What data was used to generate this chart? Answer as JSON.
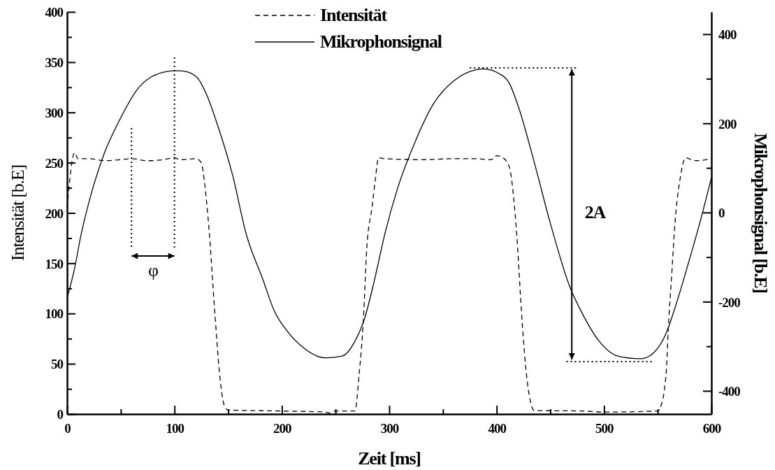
{
  "chart_data": {
    "type": "line",
    "xlabel": "Zeit [ms]",
    "ylabel": "Intensität [b.E]",
    "y2label": "Mikrophonsignal [b.E]",
    "xlim": [
      0,
      600
    ],
    "xticks": [
      0,
      {
        "value": 50,
        "label": null
      },
      100,
      {
        "value": 150,
        "label": null
      },
      200,
      {
        "value": 250,
        "label": null
      },
      300,
      {
        "value": 350,
        "label": null
      },
      400,
      {
        "value": 450,
        "label": null
      },
      500,
      {
        "value": 550,
        "label": null
      },
      600
    ],
    "ylim": [
      0,
      400
    ],
    "yticks": [
      0,
      {
        "value": 25,
        "label": null
      },
      50,
      {
        "value": 75,
        "label": null
      },
      100,
      {
        "value": 125,
        "label": null
      },
      150,
      {
        "value": 175,
        "label": null
      },
      200,
      {
        "value": 225,
        "label": null
      },
      250,
      {
        "value": 275,
        "label": null
      },
      300,
      {
        "value": 325,
        "label": null
      },
      350,
      {
        "value": 375,
        "label": null
      },
      400
    ],
    "y2lim": [
      -452,
      450
    ],
    "y2ticks": [
      -400,
      {
        "value": -300,
        "label": null
      },
      -200,
      {
        "value": -100,
        "label": null
      },
      0,
      {
        "value": 100,
        "label": null
      },
      200,
      {
        "value": 300,
        "label": null
      },
      400
    ],
    "legend": "top",
    "grid": false,
    "marker": "none",
    "annotations": [
      "φ",
      "2A"
    ],
    "series": [
      {
        "name": "Intensität",
        "color": "#000000",
        "line_style": "dashed",
        "x": [
          0,
          7,
          10,
          20,
          35,
          50,
          60,
          75,
          90,
          100,
          105,
          120,
          125,
          128,
          132,
          137.5,
          142,
          146.7,
          150,
          200,
          240,
          245,
          250,
          268,
          272,
          276,
          279,
          284,
          287,
          290,
          295,
          330,
          360,
          380,
          395,
          400,
          407,
          412,
          418,
          424,
          428,
          431,
          435,
          480,
          500,
          550,
          553,
          558,
          560,
          563,
          566,
          571,
          576,
          579,
          586,
          600
        ],
        "values": [
          205,
          260,
          254,
          254,
          252,
          253,
          254,
          252,
          253,
          255,
          253,
          254,
          250,
          230,
          186,
          102,
          40,
          7.5,
          4,
          3,
          2,
          1,
          3,
          3,
          40,
          95,
          164,
          206,
          233,
          255,
          254,
          253,
          254,
          254,
          253,
          257,
          254,
          245,
          189,
          88,
          37,
          15,
          3.5,
          3,
          2,
          3,
          8,
          43,
          88,
          138,
          189,
          235,
          255,
          254,
          252,
          254
        ]
      },
      {
        "name": "Mikrophonsignal",
        "color": "#000000",
        "line_style": "solid",
        "axis": "y2",
        "x": [
          0,
          7,
          13,
          21,
          35,
          49,
          65,
          88.5,
          100,
          109,
          121,
          130,
          140,
          154,
          167,
          182,
          193,
          205,
          221,
          240,
          256,
          268,
          277,
          286,
          296,
          308,
          324,
          341,
          360,
          388,
          402,
          412,
          421,
          435,
          450,
          469,
          478,
          495,
          513,
          534,
          546,
          558,
          567,
          579,
          589,
          600
        ],
        "values": [
          -192,
          -125,
          -50,
          29,
          135,
          208,
          275,
          314,
          318,
          317,
          303,
          264,
          197,
          85,
          -50,
          -148,
          -221,
          -266,
          -305,
          -326,
          -322,
          -289,
          -238,
          -154,
          -47,
          56,
          158,
          243,
          295,
          322,
          312,
          289,
          232,
          113,
          -24,
          -172,
          -218,
          -287,
          -322,
          -328,
          -315,
          -270,
          -207,
          -110,
          -25,
          78
        ]
      }
    ]
  }
}
